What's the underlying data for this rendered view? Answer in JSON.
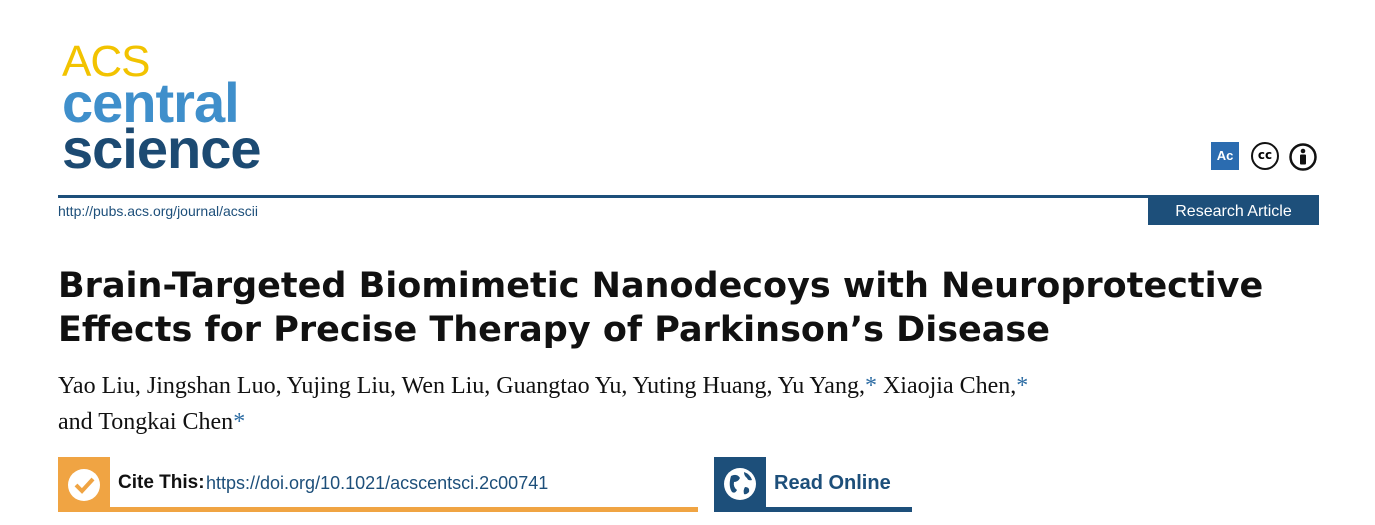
{
  "header": {
    "logo": [
      "ACS",
      "central",
      "science"
    ],
    "badges": [
      "Ac",
      "cc"
    ],
    "url": "http://pubs.acs.org/journal/acscii",
    "article_type": "Research Article"
  },
  "title": [
    "Brain-Targeted Biomimetic Nanodecoys with Neuroprotective",
    "Effects for Precise Therapy of Parkinson’s Disease"
  ],
  "authors": [
    {
      "text": "Yao Liu, Jingshan Luo, Yujing Liu, Wen Liu, Guangtao Yu, Yuting Huang, Yu Yang,",
      "mark": "*"
    },
    {
      "text": "Xiaojia Chen,",
      "mark": "*"
    },
    {
      "text": "and Tongkai Chen",
      "mark": "*"
    }
  ],
  "cite": {
    "label": "Cite This:",
    "doi": "https://doi.org/10.1021/acscentsci.2c00741"
  },
  "read_online": "Read Online"
}
